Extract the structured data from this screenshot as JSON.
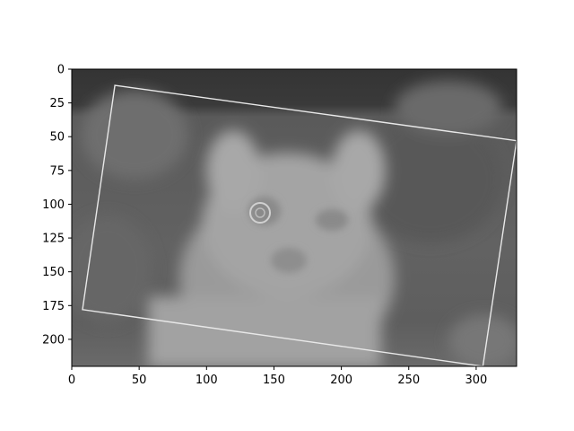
{
  "chart_data": {
    "type": "image",
    "title": "",
    "xlabel": "",
    "ylabel": "",
    "colormap": "gray",
    "xlim": [
      0,
      330
    ],
    "ylim": [
      220,
      0
    ],
    "y_inverted": true,
    "x_ticks": [
      0,
      50,
      100,
      150,
      200,
      250,
      300
    ],
    "y_ticks": [
      0,
      25,
      50,
      75,
      100,
      125,
      150,
      175,
      200
    ],
    "content": "grayscale high-pass filtered photo of a cat with a rotated rectangular frame",
    "rotated_frame_corners": [
      [
        32,
        12
      ],
      [
        330,
        53
      ],
      [
        305,
        220
      ],
      [
        8,
        178
      ]
    ]
  }
}
